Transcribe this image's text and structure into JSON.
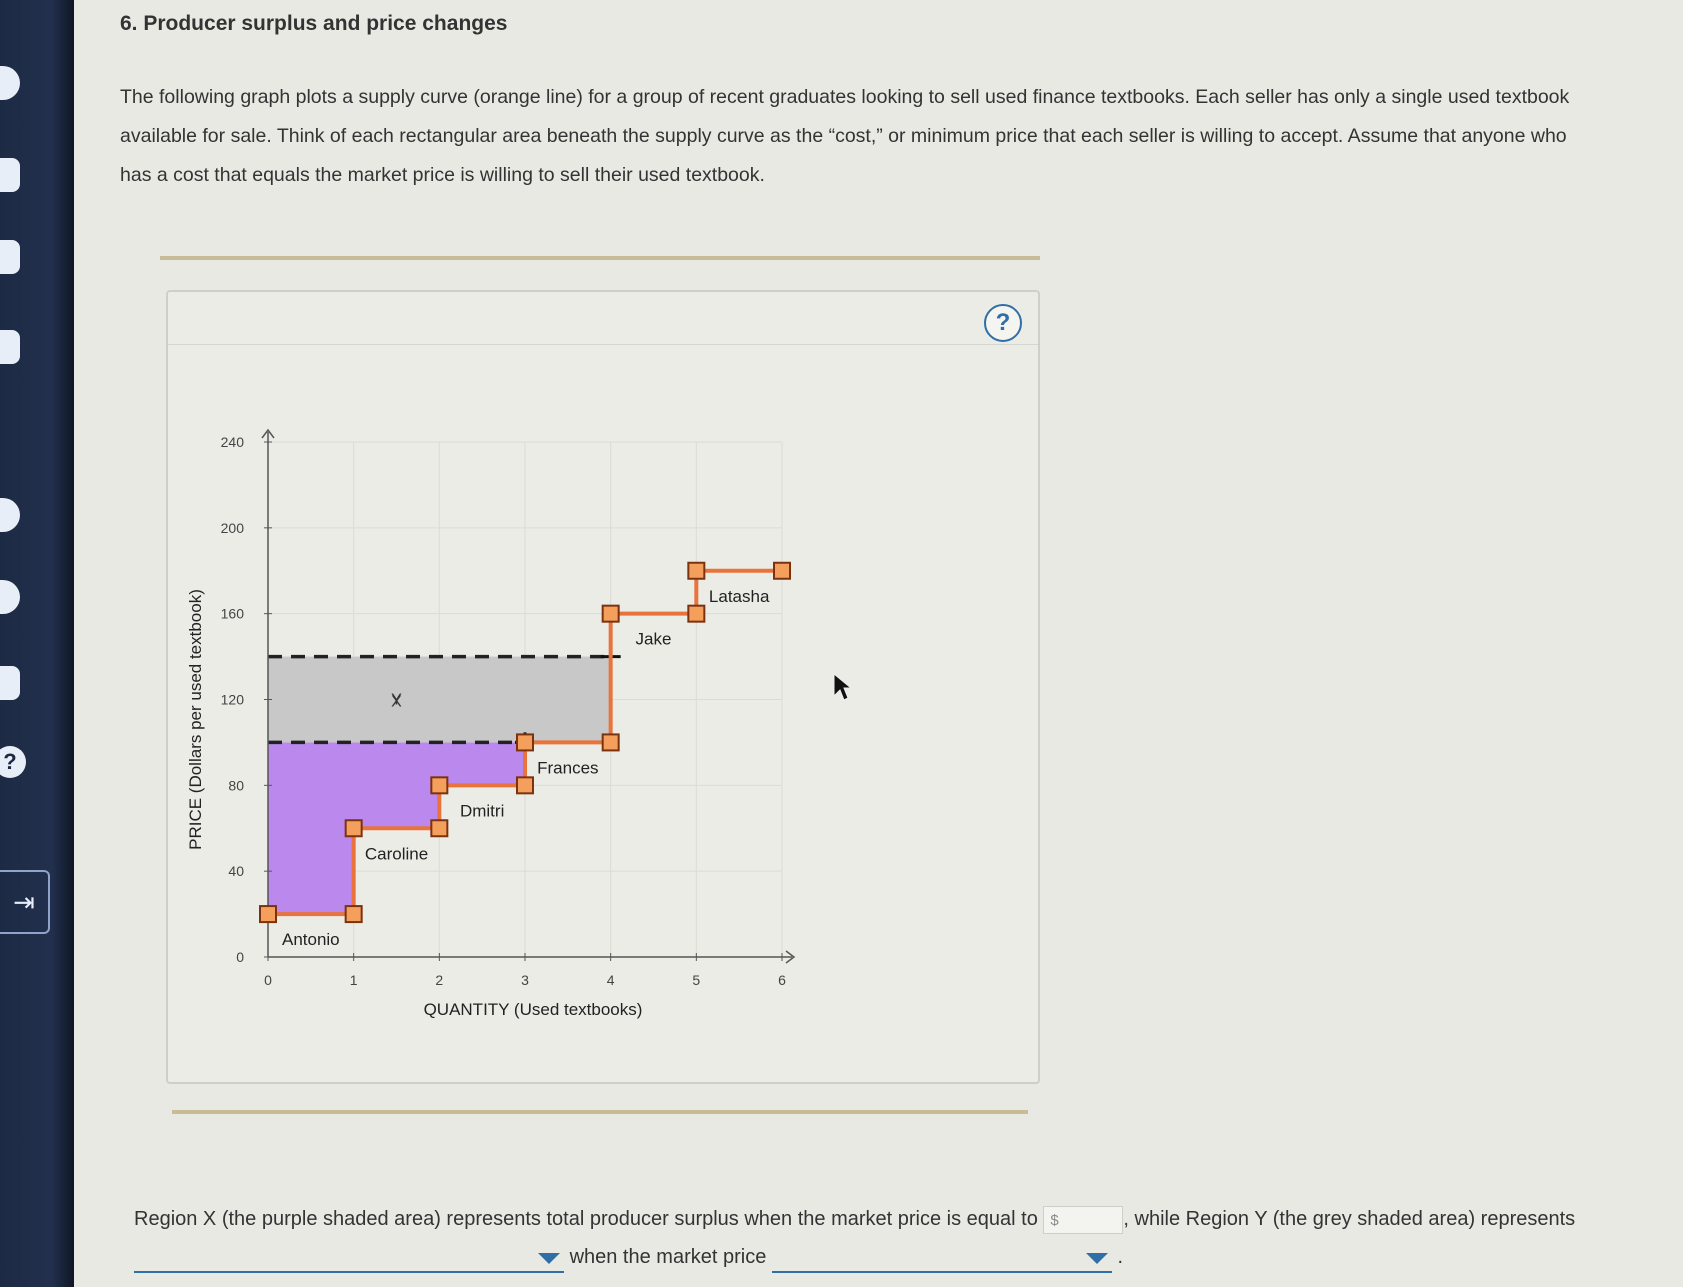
{
  "question": {
    "title": "6. Producer surplus and price changes",
    "intro": "The following graph plots a supply curve (orange line) for a group of recent graduates looking to sell used finance textbooks. Each seller has only a single used textbook available for sale. Think of each rectangular area beneath the supply curve as the “cost,” or minimum price that each seller is willing to accept. Assume that anyone who has a cost that equals the market price is willing to sell their used textbook."
  },
  "sidebar": {
    "icons": [
      "back-icon",
      "list-icon",
      "book-icon",
      "screen-icon",
      "key-icon",
      "cap-icon",
      "folder-icon",
      "help-icon",
      "exit-icon"
    ],
    "help_label": "?",
    "exit_label": "⇥"
  },
  "panel": {
    "help_label": "?"
  },
  "colors": {
    "supply_line": "#e8743b",
    "marker_fill": "#f4a05c",
    "marker_stroke": "#7a3210",
    "region_x": "#bb88ee",
    "region_y": "#c8c8c8",
    "accent": "#2f6ea6"
  },
  "chart_data": {
    "type": "step-supply",
    "xlabel": "QUANTITY (Used textbooks)",
    "ylabel": "PRICE (Dollars per used textbook)",
    "xlim": [
      0,
      6
    ],
    "ylim": [
      0,
      240
    ],
    "x_ticks": [
      0,
      1,
      2,
      3,
      4,
      5,
      6
    ],
    "y_ticks": [
      0,
      40,
      80,
      120,
      160,
      200,
      240
    ],
    "grid": true,
    "sellers": [
      {
        "name": "Antonio",
        "cost": 20,
        "q_start": 0,
        "q_end": 1
      },
      {
        "name": "Caroline",
        "cost": 60,
        "q_start": 1,
        "q_end": 2
      },
      {
        "name": "Dmitri",
        "cost": 80,
        "q_start": 2,
        "q_end": 3
      },
      {
        "name": "Frances",
        "cost": 100,
        "q_start": 3,
        "q_end": 4
      },
      {
        "name": "Jake",
        "cost": 160,
        "q_start": 4,
        "q_end": 5
      },
      {
        "name": "Latasha",
        "cost": 180,
        "q_start": 5,
        "q_end": 6
      }
    ],
    "price_lines": [
      100,
      140
    ],
    "regions": [
      {
        "label": "X",
        "description": "purple shaded area",
        "between_price": [
          null,
          100
        ],
        "q_range": [
          0,
          3
        ]
      },
      {
        "label": "Y",
        "description": "grey shaded area",
        "between_price": [
          100,
          140
        ],
        "q_range": [
          0,
          4
        ]
      }
    ]
  },
  "answer": {
    "part1": "Region X (the purple shaded area) represents total producer surplus when the market price is equal to",
    "currency": "$",
    "part2": ", while Region Y (the grey shaded area) represents",
    "part3": "when the market price",
    "end": "."
  }
}
